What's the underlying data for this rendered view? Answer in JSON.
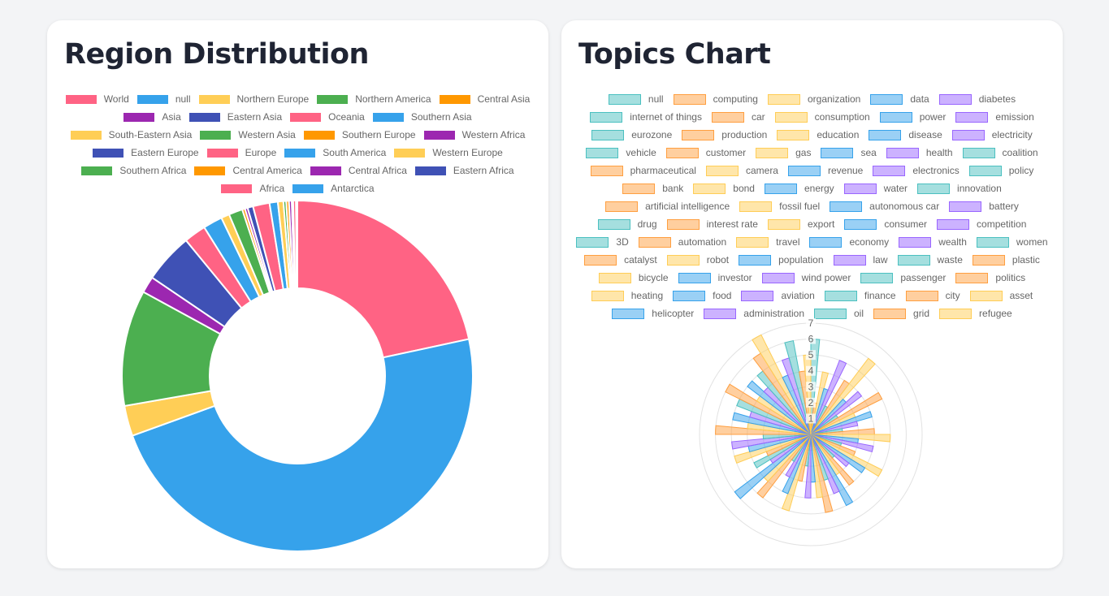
{
  "charts": [
    {
      "title": "Region Distribution",
      "chart_data": {
        "type": "doughnut",
        "legend_position": "top",
        "labels": [
          "World",
          "null",
          "Northern Europe",
          "Northern America",
          "Central Asia",
          "Asia",
          "Eastern Asia",
          "Oceania",
          "Southern Asia",
          "South-Eastern Asia",
          "Western Asia",
          "Southern Europe",
          "Western Africa",
          "Eastern Europe",
          "Europe",
          "South America",
          "Western Europe",
          "Southern Africa",
          "Central America",
          "Central Africa",
          "Eastern Africa",
          "Africa",
          "Antarctica"
        ],
        "values": [
          85,
          188,
          11,
          42,
          0,
          6,
          18,
          8,
          7,
          3,
          5,
          1,
          1,
          2,
          6,
          3,
          2,
          1,
          1,
          1,
          0.5,
          1,
          0.5
        ],
        "colors": [
          "#ff6384",
          "#36a2eb",
          "#ffce56",
          "#4caf50",
          "#ff9800",
          "#9c27b0",
          "#3f51b5",
          "#ff6384",
          "#36a2eb",
          "#ffce56",
          "#4caf50",
          "#ff9800",
          "#9c27b0",
          "#3f51b5",
          "#ff6384",
          "#36a2eb",
          "#ffce56",
          "#4caf50",
          "#ff9800",
          "#9c27b0",
          "#3f51b5",
          "#ff6384",
          "#36a2eb"
        ]
      }
    },
    {
      "title": "Topics Chart",
      "chart_data": {
        "type": "polarArea",
        "legend_position": "top",
        "r_ticks": [
          "1",
          "2",
          "3",
          "4",
          "5",
          "6",
          "7"
        ],
        "r_max": 7,
        "labels": [
          "null",
          "computing",
          "organization",
          "data",
          "diabetes",
          "internet of things",
          "car",
          "consumption",
          "power",
          "emission",
          "eurozone",
          "production",
          "education",
          "disease",
          "electricity",
          "vehicle",
          "customer",
          "gas",
          "sea",
          "health",
          "coalition",
          "pharmaceutical",
          "camera",
          "revenue",
          "electronics",
          "policy",
          "bank",
          "bond",
          "energy",
          "water",
          "innovation",
          "artificial intelligence",
          "fossil fuel",
          "autonomous car",
          "battery",
          "drug",
          "interest rate",
          "export",
          "consumer",
          "competition",
          "3D",
          "automation",
          "travel",
          "economy",
          "wealth",
          "women",
          "catalyst",
          "robot",
          "population",
          "law",
          "waste",
          "plastic",
          "bicycle",
          "investor",
          "wind power",
          "passenger",
          "politics",
          "heating",
          "food",
          "aviation",
          "finance",
          "city",
          "asset",
          "helicopter",
          "administration",
          "oil",
          "grid",
          "refugee"
        ],
        "values": [
          6,
          2,
          4,
          3,
          5,
          2,
          4,
          6,
          3,
          4,
          2,
          5,
          3,
          4,
          3,
          2,
          4,
          5,
          3,
          4,
          2,
          3,
          5,
          4,
          3,
          2,
          4,
          3,
          5,
          4,
          3,
          5,
          4,
          3,
          4,
          2,
          3,
          5,
          4,
          3,
          2,
          5,
          4,
          6,
          3,
          4,
          3,
          5,
          4,
          5,
          3,
          6,
          4,
          5,
          4,
          5,
          6,
          4,
          5,
          4,
          5,
          6,
          7,
          4,
          5,
          6,
          4,
          5
        ],
        "colors_fill": [
          "rgba(75,192,192,0.5)",
          "rgba(255,159,64,0.5)",
          "rgba(255,205,86,0.5)",
          "rgba(54,162,235,0.5)",
          "rgba(153,102,255,0.5)"
        ],
        "colors_border": [
          "rgb(75,192,192)",
          "rgb(255,159,64)",
          "rgb(255,205,86)",
          "rgb(54,162,235)",
          "rgb(153,102,255)"
        ]
      }
    }
  ]
}
